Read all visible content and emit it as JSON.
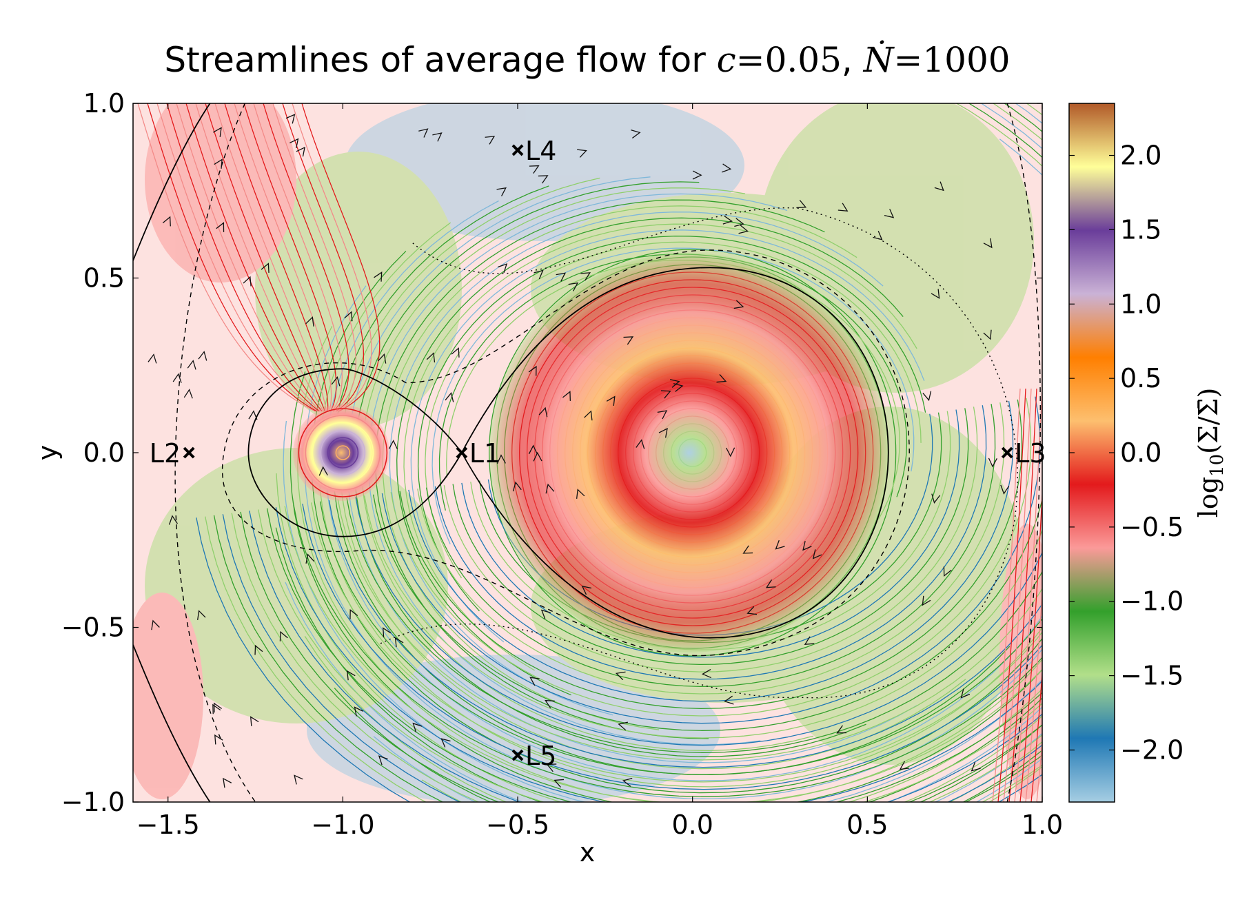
{
  "chart_data": {
    "type": "streamplot",
    "title": {
      "prefix": "Streamlines of average flow for ",
      "c_symbol": "c",
      "c_value": "0.05",
      "separator": ", ",
      "n_symbol": "Ṅ",
      "n_value": "1000"
    },
    "xlabel": "x",
    "ylabel": "y",
    "xlim": [
      -1.6,
      1.0
    ],
    "ylim": [
      -1.0,
      1.0
    ],
    "xticks": [
      -1.5,
      -1.0,
      -0.5,
      0.0,
      0.5,
      1.0
    ],
    "xtick_labels": [
      "−1.5",
      "−1.0",
      "−0.5",
      "0.0",
      "0.5",
      "1.0"
    ],
    "yticks": [
      -1.0,
      -0.5,
      0.0,
      0.5,
      1.0
    ],
    "ytick_labels": [
      "−1.0",
      "−0.5",
      "0.0",
      "0.5",
      "1.0"
    ],
    "colorbar": {
      "label": "log10(Σ/Σ̄)",
      "label_main": "log",
      "label_sub": "10",
      "label_arg": "(Σ/Σ̄)",
      "range": [
        -2.35,
        2.35
      ],
      "ticks": [
        2.0,
        1.5,
        1.0,
        0.5,
        0.0,
        -0.5,
        -1.0,
        -1.5,
        -2.0
      ],
      "tick_labels": [
        "2.0",
        "1.5",
        "1.0",
        "0.5",
        "0.0",
        "−0.5",
        "−1.0",
        "−1.5",
        "−2.0"
      ],
      "colors": [
        "#a6cee3",
        "#1f78b4",
        "#b2df8a",
        "#33a02c",
        "#fb9a99",
        "#e31a1c",
        "#fdbf6f",
        "#ff7f00",
        "#cab2d6",
        "#6a3d9a",
        "#ffff99",
        "#b15928"
      ]
    },
    "lagrange_points": [
      {
        "name": "L1",
        "x": -0.66,
        "y": 0.0
      },
      {
        "name": "L2",
        "x": -1.44,
        "y": 0.0
      },
      {
        "name": "L3",
        "x": 0.9,
        "y": 0.0
      },
      {
        "name": "L4",
        "x": -0.5,
        "y": 0.866
      },
      {
        "name": "L5",
        "x": -0.5,
        "y": -0.866
      }
    ],
    "bodies": [
      {
        "name": "primary",
        "x": 0.0,
        "y": 0.0
      },
      {
        "name": "secondary",
        "x": -1.0,
        "y": 0.0
      }
    ]
  }
}
